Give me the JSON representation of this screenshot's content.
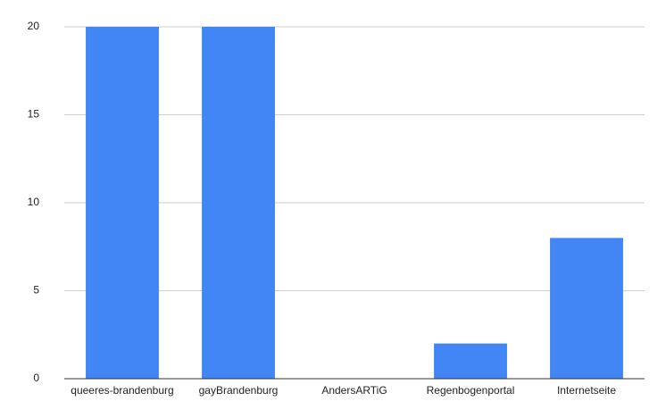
{
  "chart_data": {
    "type": "bar",
    "categories": [
      "queeres-brandenburg",
      "gayBrandenburg",
      "AndersARTiG",
      "Regenbogenportal",
      "Internetseite"
    ],
    "values": [
      20,
      20,
      0,
      2,
      8
    ],
    "color": "#4285f4",
    "ylim": [
      0,
      20
    ],
    "yticks": [
      0,
      5,
      10,
      15,
      20
    ],
    "grid": true
  }
}
